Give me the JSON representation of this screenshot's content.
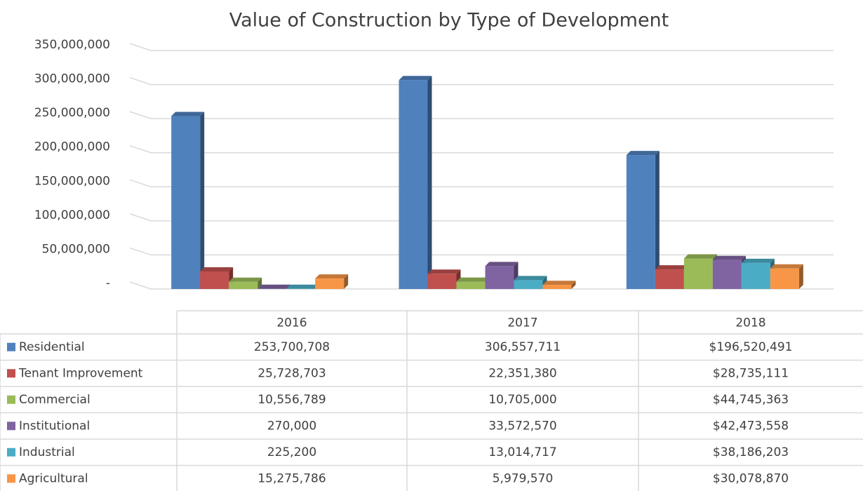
{
  "chart_data": {
    "type": "bar3d",
    "title": "Value of Construction by Type of Development",
    "categories": [
      "2016",
      "2017",
      "2018"
    ],
    "series": [
      {
        "name": "Residential",
        "color": "#4f81bd",
        "values": [
          253700708,
          306557711,
          196520491
        ],
        "value_labels": [
          "253,700,708",
          "306,557,711",
          "$196,520,491"
        ]
      },
      {
        "name": "Tenant Improvement",
        "color": "#c0504d",
        "values": [
          25728703,
          22351380,
          28735111
        ],
        "value_labels": [
          "25,728,703",
          "22,351,380",
          "$28,735,111"
        ]
      },
      {
        "name": "Commercial",
        "color": "#9bbb59",
        "values": [
          10556789,
          10705000,
          44745363
        ],
        "value_labels": [
          "10,556,789",
          "10,705,000",
          "$44,745,363"
        ]
      },
      {
        "name": "Institutional",
        "color": "#8064a2",
        "values": [
          270000,
          33572570,
          42473558
        ],
        "value_labels": [
          "270,000",
          "33,572,570",
          "$42,473,558"
        ]
      },
      {
        "name": "Industrial",
        "color": "#4bacc6",
        "values": [
          225200,
          13014717,
          38186203
        ],
        "value_labels": [
          "225,200",
          "13,014,717",
          "$38,186,203"
        ]
      },
      {
        "name": "Agricultural",
        "color": "#f79646",
        "values": [
          15275786,
          5979570,
          30078870
        ],
        "value_labels": [
          "15,275,786",
          "5,979,570",
          "$30,078,870"
        ]
      }
    ],
    "ylim": [
      0,
      350000000
    ],
    "yticks": [
      {
        "value": 0,
        "label": "-"
      },
      {
        "value": 50000000,
        "label": "50,000,000"
      },
      {
        "value": 100000000,
        "label": "100,000,000"
      },
      {
        "value": 150000000,
        "label": "150,000,000"
      },
      {
        "value": 200000000,
        "label": "200,000,000"
      },
      {
        "value": 250000000,
        "label": "250,000,000"
      },
      {
        "value": 300000000,
        "label": "300,000,000"
      },
      {
        "value": 350000000,
        "label": "350,000,000"
      }
    ],
    "grid": true
  }
}
